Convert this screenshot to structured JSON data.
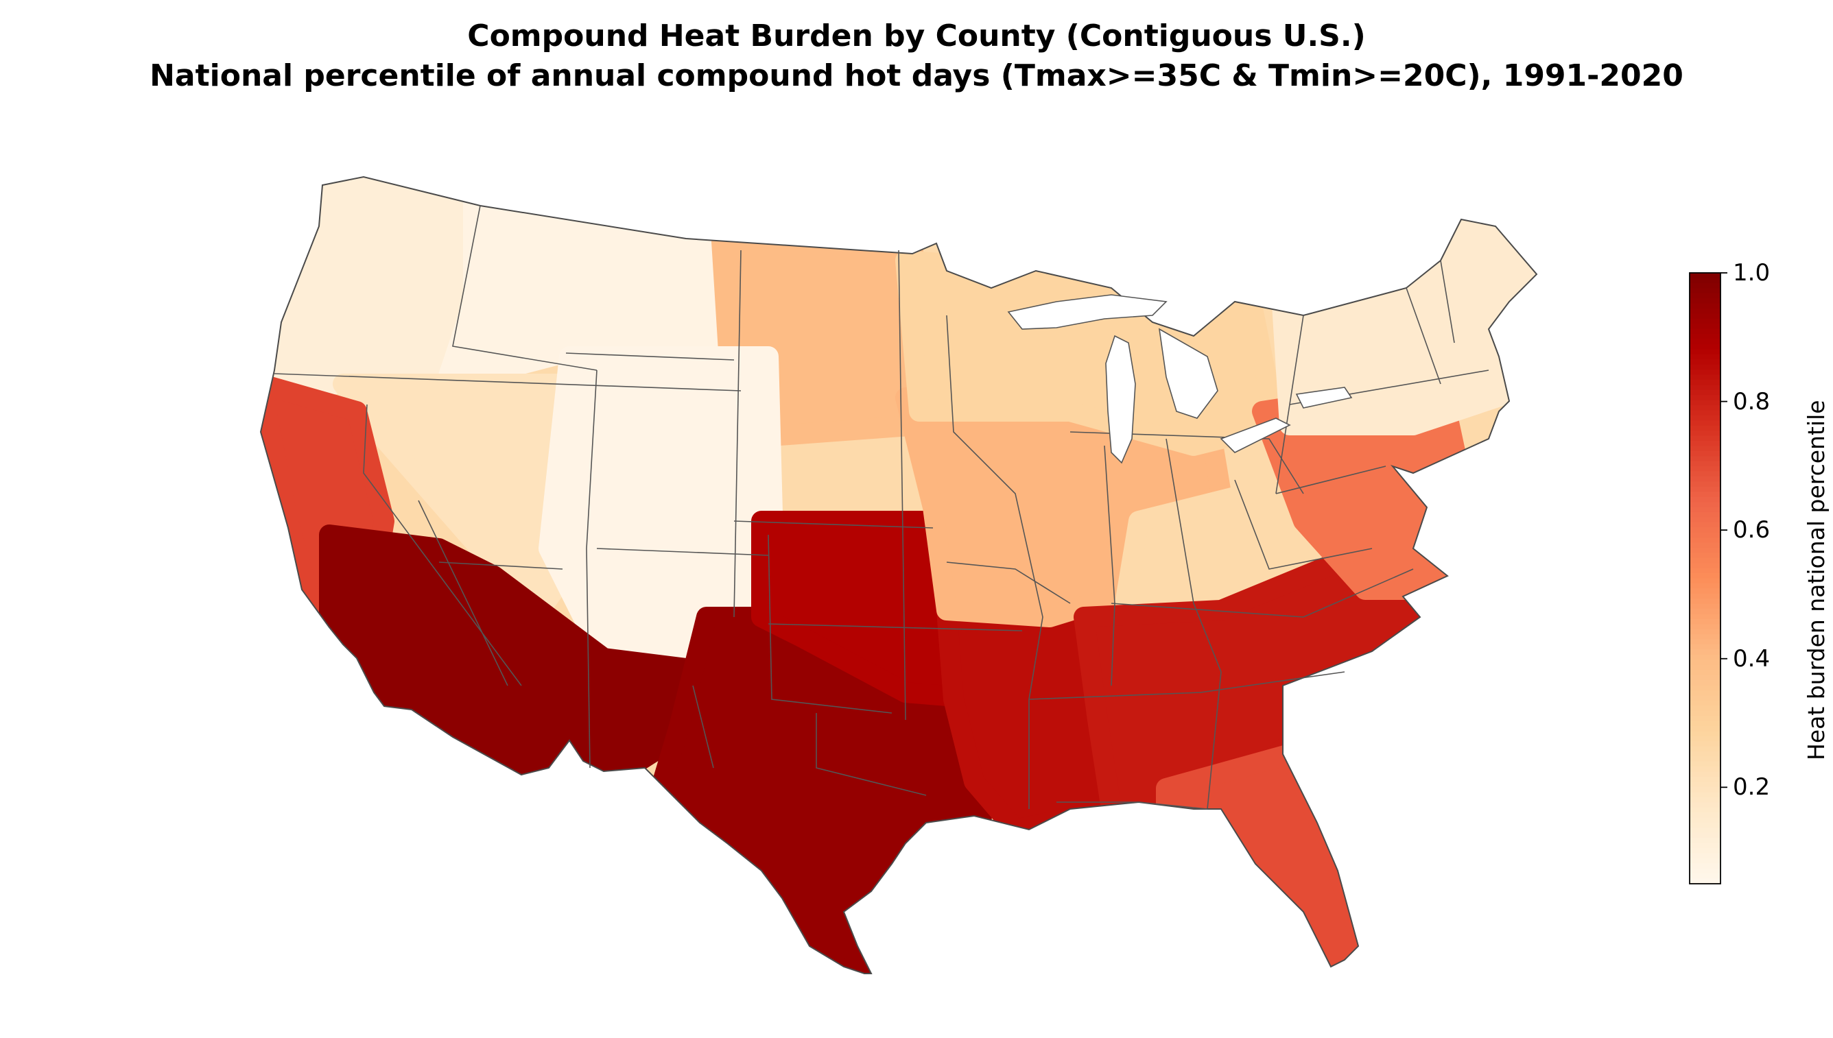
{
  "title": {
    "line1": "Compound Heat Burden by County (Contiguous U.S.)",
    "line2": "National percentile of annual compound hot days (Tmax>=35C & Tmin>=20C), 1991-2020"
  },
  "colorbar": {
    "label": "Heat burden national percentile",
    "min": 0.05,
    "max": 1.0,
    "ticks": [
      {
        "value": 0.2,
        "label": "0.2"
      },
      {
        "value": 0.4,
        "label": "0.4"
      },
      {
        "value": 0.6,
        "label": "0.6"
      },
      {
        "value": 0.8,
        "label": "0.8"
      },
      {
        "value": 1.0,
        "label": "1.0"
      }
    ],
    "colormap": "OrRd",
    "stops": [
      "#fff7ec",
      "#fee8c8",
      "#fdd49e",
      "#fdbb84",
      "#fc8d59",
      "#ef6548",
      "#d7301f",
      "#b30000",
      "#7f0000"
    ]
  },
  "map": {
    "region": "Contiguous U.S.",
    "unit": "county",
    "regions": [
      {
        "name": "Pacific Northwest",
        "value": 0.12
      },
      {
        "name": "Northern Rockies",
        "value": 0.08
      },
      {
        "name": "Northern Plains",
        "value": 0.4
      },
      {
        "name": "Great Basin",
        "value": 0.2
      },
      {
        "name": "Central Rockies",
        "value": 0.07
      },
      {
        "name": "Central California",
        "value": 0.72
      },
      {
        "name": "Desert Southwest",
        "value": 0.97
      },
      {
        "name": "Southern Plains / Texas",
        "value": 0.95
      },
      {
        "name": "Oklahoma / Kansas",
        "value": 0.88
      },
      {
        "name": "Lower Mississippi Valley",
        "value": 0.85
      },
      {
        "name": "Midwest",
        "value": 0.42
      },
      {
        "name": "Great Lakes",
        "value": 0.28
      },
      {
        "name": "Appalachia",
        "value": 0.25
      },
      {
        "name": "Southeast",
        "value": 0.82
      },
      {
        "name": "Florida",
        "value": 0.7
      },
      {
        "name": "Mid-Atlantic",
        "value": 0.6
      },
      {
        "name": "Northeast",
        "value": 0.15
      }
    ]
  }
}
